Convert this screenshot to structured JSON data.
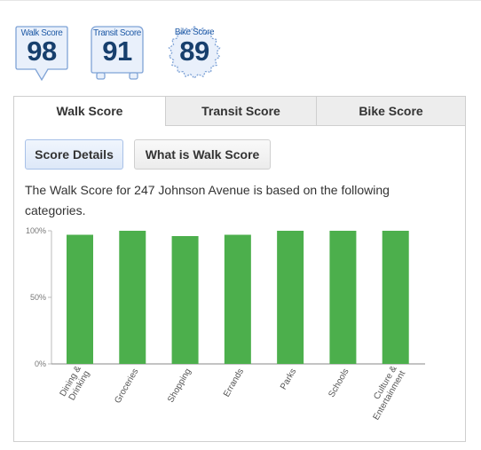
{
  "badges": [
    {
      "label": "Walk Score",
      "value": "98",
      "shape": "pin"
    },
    {
      "label": "Transit Score",
      "value": "91",
      "shape": "bus"
    },
    {
      "label": "Bike Score",
      "value": "89",
      "shape": "gear"
    }
  ],
  "tabs": [
    {
      "label": "Walk Score",
      "active": true
    },
    {
      "label": "Transit Score",
      "active": false
    },
    {
      "label": "Bike Score",
      "active": false
    }
  ],
  "buttons": {
    "score_details": "Score Details",
    "what_is": "What is Walk Score"
  },
  "description": "The Walk Score for 247 Johnson Avenue is based on the following categories.",
  "chart_data": {
    "type": "bar",
    "categories": [
      "Dining & Drinking",
      "Groceries",
      "Shopping",
      "Errands",
      "Parks",
      "Schools",
      "Culture & Entertainment"
    ],
    "category_lines": [
      [
        "Dining &",
        "Drinking"
      ],
      [
        "Groceries"
      ],
      [
        "Shopping"
      ],
      [
        "Errands"
      ],
      [
        "Parks"
      ],
      [
        "Schools"
      ],
      [
        "Culture &",
        "Entertainment"
      ]
    ],
    "values": [
      97,
      100,
      96,
      97,
      100,
      100,
      100
    ],
    "ylim": [
      0,
      100
    ],
    "yticks": [
      "0%",
      "50%",
      "100%"
    ],
    "ytick_values": [
      0,
      50,
      100
    ],
    "bar_color": "#4caf4c",
    "grid": false
  },
  "colors": {
    "badge_fill": "#e9f0fb",
    "badge_stroke": "#7fa3d6",
    "label": "#1f5aa6",
    "value": "#173f6d"
  }
}
